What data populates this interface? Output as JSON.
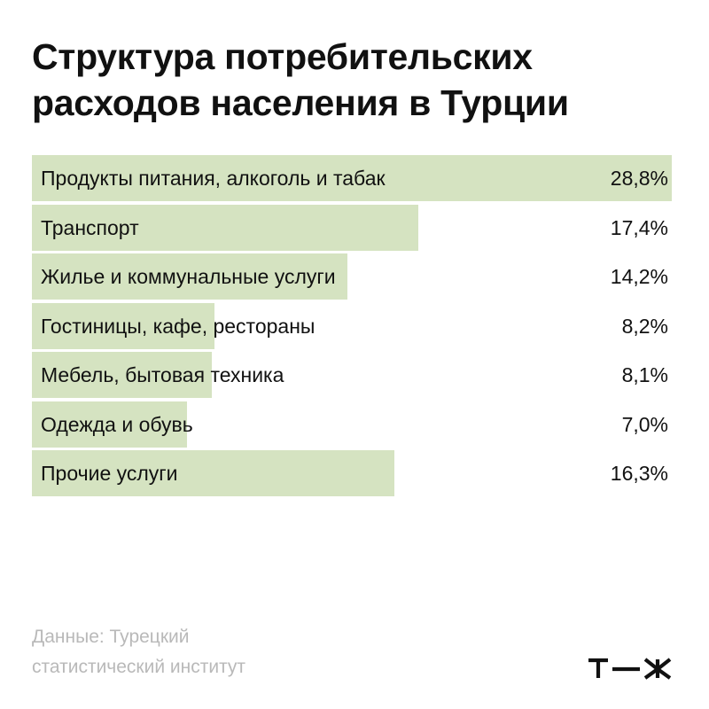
{
  "header": {
    "title_line1": "Структура потребительских",
    "title_line2": "расходов населения в Турции"
  },
  "chart_data": {
    "type": "bar",
    "orientation": "horizontal",
    "title": "Структура потребительских расходов населения в Турции",
    "categories": [
      "Продукты питания, алкоголь и табак",
      "Транспорт",
      "Жилье и коммунальные услуги",
      "Гостиницы, кафе, рестораны",
      "Мебель, бытовая техника",
      "Одежда и обувь",
      "Прочие услуги"
    ],
    "values": [
      28.8,
      17.4,
      14.2,
      8.2,
      8.1,
      7.0,
      16.3
    ],
    "value_labels": [
      "28,8%",
      "17,4%",
      "14,2%",
      "8,2%",
      "8,1%",
      "7,0%",
      "16,3%"
    ],
    "xlim": [
      0,
      28.8
    ],
    "bar_color": "#d5e3c1",
    "grid": false,
    "legend": "none"
  },
  "footer": {
    "source_line1": "Данные: Турецкий",
    "source_line2": "статистический институт",
    "logo_text": "т—ж"
  }
}
